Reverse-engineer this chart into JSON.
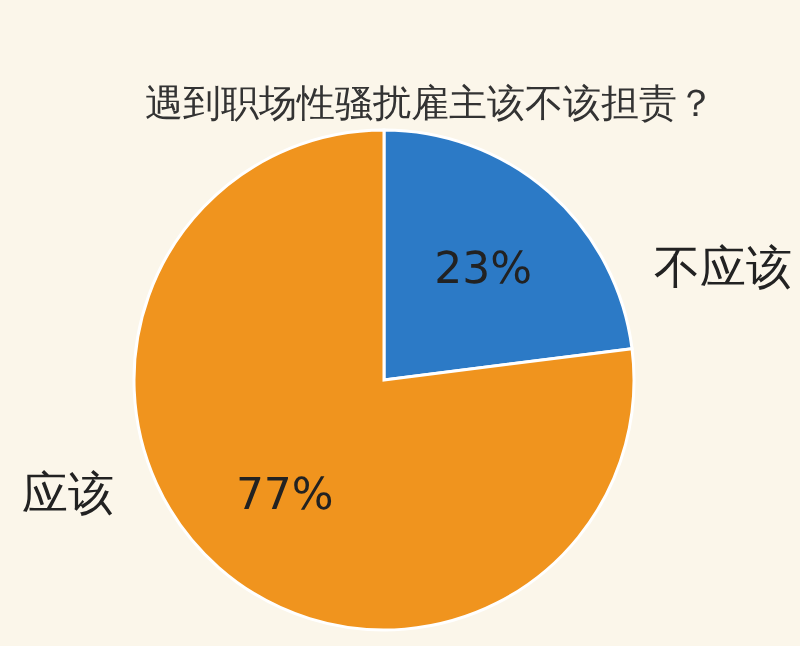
{
  "chart_data": {
    "type": "pie",
    "title": "遇到职场性骚扰雇主该不该担责？",
    "categories": [
      "不应该",
      "应该"
    ],
    "values": [
      23,
      77
    ],
    "colors": [
      "#2c7ac6",
      "#f0941e"
    ],
    "value_labels": [
      "23%",
      "77%"
    ]
  }
}
